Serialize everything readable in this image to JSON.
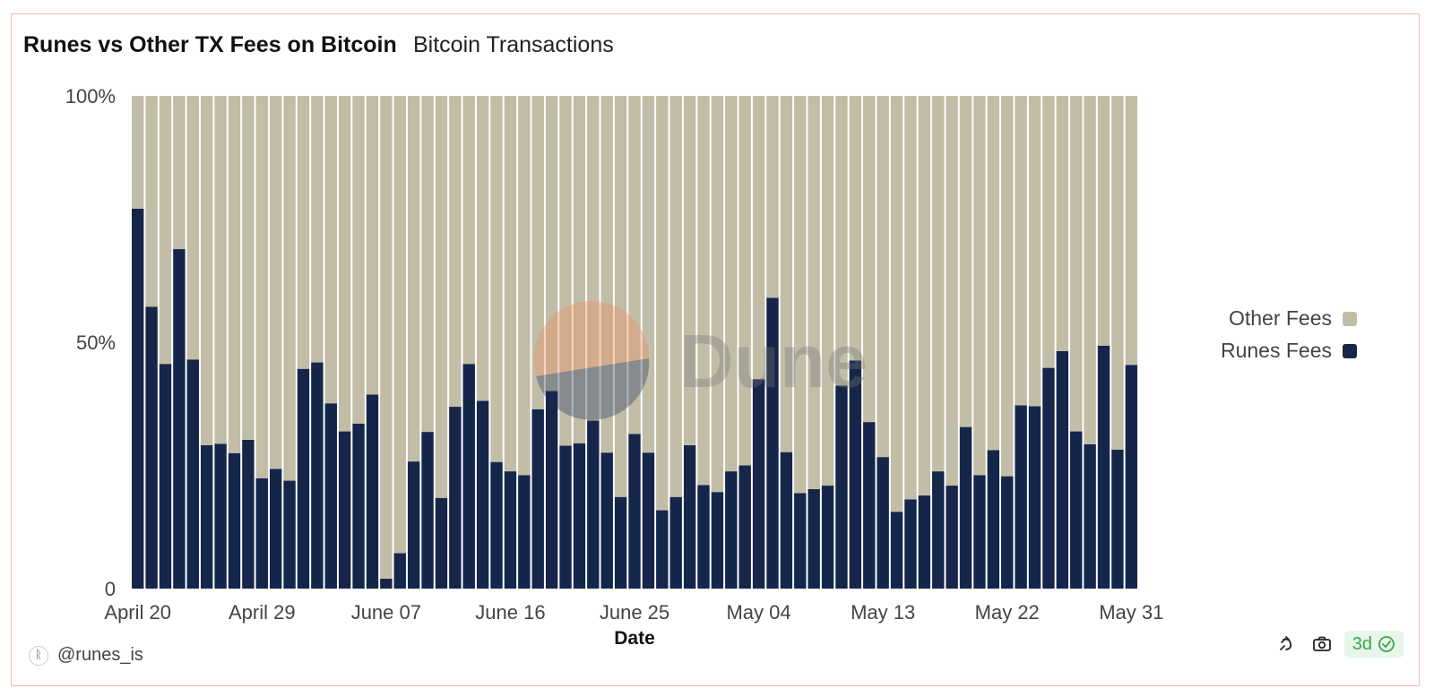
{
  "header": {
    "title": "Runes vs Other TX Fees on Bitcoin",
    "subtitle": "Bitcoin Transactions"
  },
  "footer": {
    "author": "@runes_is",
    "author_icon": "runes-avatar-icon",
    "refresh_badge": "3d",
    "icons": [
      "share-icon",
      "camera-icon",
      "verified-check-icon"
    ]
  },
  "watermark": "Dune",
  "chart_data": {
    "type": "bar",
    "stacked": true,
    "normalized": true,
    "xlabel": "Date",
    "ylabel": "",
    "ylim": [
      0,
      100
    ],
    "y_ticks": [
      "0",
      "50%",
      "100%"
    ],
    "x_tick_labels": [
      "April 20",
      "April 29",
      "June 07",
      "June 16",
      "June 25",
      "May 04",
      "May 13",
      "May 22",
      "May 31"
    ],
    "legend_position": "right",
    "series": [
      {
        "name": "Other Fees",
        "color": "#c2bda6",
        "values": [
          22.9,
          42.8,
          54.4,
          31.1,
          53.5,
          70.9,
          70.6,
          72.5,
          69.8,
          77.6,
          75.7,
          78.1,
          55.4,
          54.1,
          62.4,
          68.1,
          66.5,
          60.6,
          98.0,
          92.8,
          74.2,
          68.2,
          81.6,
          63.1,
          54.4,
          61.9,
          74.3,
          76.2,
          77.0,
          63.6,
          59.9,
          71.0,
          70.5,
          65.9,
          72.4,
          81.4,
          68.6,
          72.4,
          84.1,
          81.4,
          70.9,
          79.0,
          80.4,
          76.2,
          75.0,
          57.5,
          41.0,
          72.3,
          80.6,
          79.8,
          79.1,
          58.8,
          53.7,
          66.2,
          73.3,
          84.4,
          81.9,
          81.1,
          76.2,
          79.1,
          67.2,
          77.0,
          71.9,
          77.2,
          62.8,
          63.0,
          55.2,
          51.8,
          68.1,
          70.7,
          50.7,
          71.8,
          54.6
        ]
      },
      {
        "name": "Runes Fees",
        "color": "#15264a",
        "values": [
          77.1,
          57.2,
          45.6,
          68.9,
          46.5,
          29.1,
          29.4,
          27.5,
          30.2,
          22.4,
          24.3,
          21.9,
          44.6,
          45.9,
          37.6,
          31.9,
          33.5,
          39.4,
          2.0,
          7.2,
          25.8,
          31.8,
          18.4,
          36.9,
          45.6,
          38.1,
          25.7,
          23.8,
          23.0,
          36.4,
          40.1,
          29.0,
          29.5,
          34.1,
          27.6,
          18.6,
          31.4,
          27.6,
          15.9,
          18.6,
          29.1,
          21.0,
          19.6,
          23.8,
          25.0,
          42.5,
          59.0,
          27.7,
          19.4,
          20.2,
          20.9,
          41.2,
          46.3,
          33.8,
          26.7,
          15.6,
          18.1,
          18.9,
          23.8,
          20.9,
          32.8,
          23.0,
          28.1,
          22.8,
          37.2,
          37.0,
          44.8,
          48.2,
          31.9,
          29.3,
          49.3,
          28.2,
          45.4
        ]
      }
    ]
  }
}
